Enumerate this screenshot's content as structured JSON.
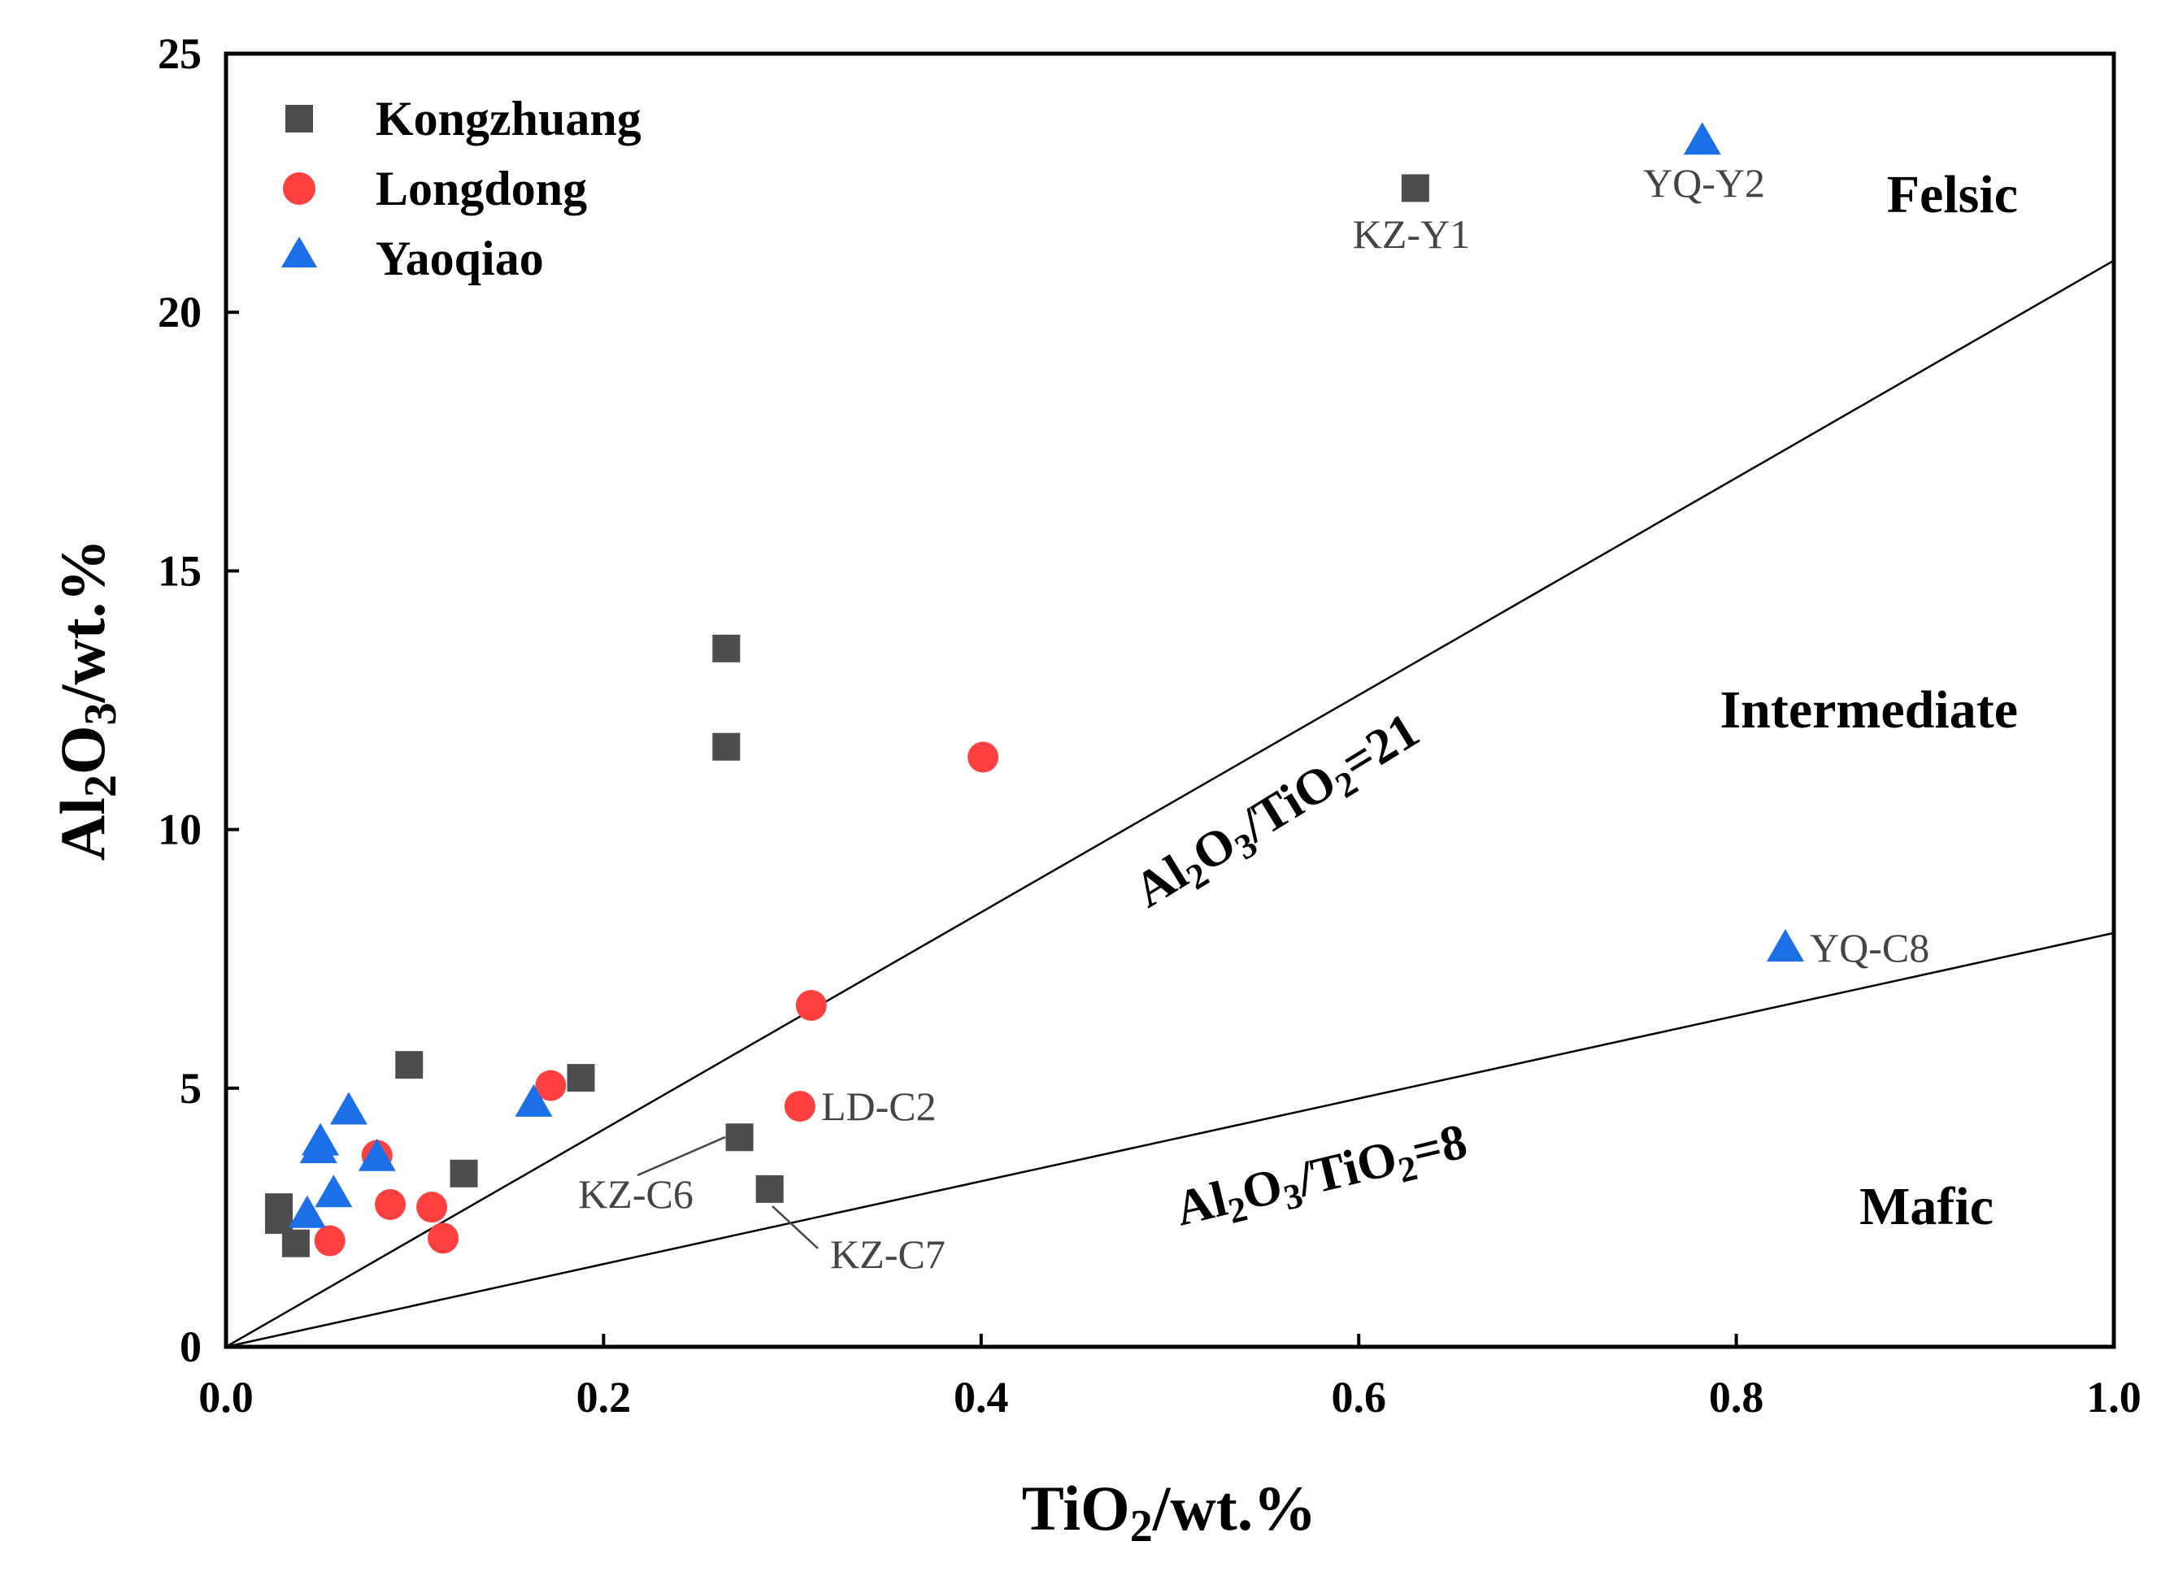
{
  "chart_data": {
    "type": "scatter",
    "xlabel": {
      "base": "TiO",
      "sub": "2",
      "tail": "/wt.%"
    },
    "ylabel": {
      "p1": "Al",
      "s1": "2",
      "p2": "O",
      "s2": "3",
      "tail": "/wt.%"
    },
    "xlim": [
      0,
      1.0
    ],
    "ylim": [
      0,
      25
    ],
    "x_ticks": [
      "0.0",
      "0.2",
      "0.4",
      "0.6",
      "0.8",
      "1.0"
    ],
    "y_ticks": [
      "0",
      "5",
      "10",
      "15",
      "20",
      "25"
    ],
    "x_tick_values": [
      0,
      0.2,
      0.4,
      0.6,
      0.8,
      1.0
    ],
    "y_tick_values": [
      0,
      5,
      10,
      15,
      20,
      25
    ],
    "legend_position": "top-left",
    "grid": false,
    "series": [
      {
        "name": "Kongzhuang",
        "marker": "square",
        "color": "#4d4d4d",
        "points": [
          {
            "x": 0.63,
            "y": 22.4
          },
          {
            "x": 0.265,
            "y": 13.5
          },
          {
            "x": 0.265,
            "y": 11.6
          },
          {
            "x": 0.097,
            "y": 5.45
          },
          {
            "x": 0.188,
            "y": 5.2
          },
          {
            "x": 0.272,
            "y": 4.05
          },
          {
            "x": 0.288,
            "y": 3.05
          },
          {
            "x": 0.126,
            "y": 3.35
          },
          {
            "x": 0.028,
            "y": 2.7
          },
          {
            "x": 0.028,
            "y": 2.45
          },
          {
            "x": 0.037,
            "y": 2.0
          }
        ]
      },
      {
        "name": "Longdong",
        "marker": "circle",
        "color": "#ff4040",
        "points": [
          {
            "x": 0.401,
            "y": 11.4
          },
          {
            "x": 0.31,
            "y": 6.6
          },
          {
            "x": 0.172,
            "y": 5.05
          },
          {
            "x": 0.304,
            "y": 4.65
          },
          {
            "x": 0.08,
            "y": 3.7
          },
          {
            "x": 0.087,
            "y": 2.75
          },
          {
            "x": 0.109,
            "y": 2.7
          },
          {
            "x": 0.115,
            "y": 2.1
          },
          {
            "x": 0.055,
            "y": 2.05
          }
        ]
      },
      {
        "name": "Yaoqiao",
        "marker": "triangle",
        "color": "#1c6fe6",
        "points": [
          {
            "x": 0.782,
            "y": 23.3
          },
          {
            "x": 0.826,
            "y": 7.7
          },
          {
            "x": 0.163,
            "y": 4.7
          },
          {
            "x": 0.065,
            "y": 4.55
          },
          {
            "x": 0.05,
            "y": 3.95
          },
          {
            "x": 0.049,
            "y": 3.8
          },
          {
            "x": 0.08,
            "y": 3.65
          },
          {
            "x": 0.057,
            "y": 2.95
          },
          {
            "x": 0.043,
            "y": 2.55
          }
        ]
      }
    ],
    "reference_lines": [
      {
        "ratio": 21,
        "label": {
          "a": "Al",
          "b": "2",
          "c": "O",
          "d": "3",
          "e": "/TiO",
          "f": "2",
          "g": "=21"
        }
      },
      {
        "ratio": 8,
        "label": {
          "a": "Al",
          "b": "2",
          "c": "O",
          "d": "3",
          "e": "/TiO",
          "f": "2",
          "g": "=8"
        }
      }
    ],
    "regions": [
      "Felsic",
      "Intermediate",
      "Mafic"
    ],
    "annotations": [
      {
        "text": "KZ-Y1",
        "x": 0.63,
        "y": 22.4
      },
      {
        "text": "YQ-Y2",
        "x": 0.782,
        "y": 23.3
      },
      {
        "text": "YQ-C8",
        "x": 0.826,
        "y": 7.7
      },
      {
        "text": "LD-C2",
        "x": 0.304,
        "y": 4.65
      },
      {
        "text": "KZ-C6",
        "x": 0.272,
        "y": 4.05
      },
      {
        "text": "KZ-C7",
        "x": 0.288,
        "y": 3.05
      }
    ]
  }
}
